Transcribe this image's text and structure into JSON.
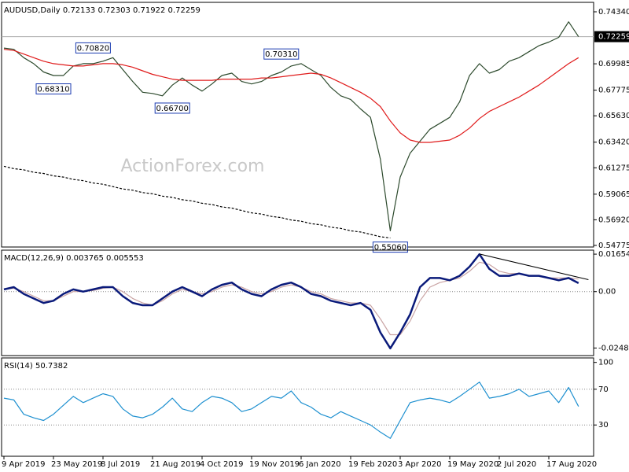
{
  "chart_data": [
    {
      "type": "line",
      "title": "AUDUSD,Daily",
      "ohlc": [
        0.72133,
        0.72303,
        0.71922,
        0.72259
      ],
      "watermark": "ActionForex.com",
      "categories": [
        "9 Apr 2019",
        null,
        null,
        null,
        null,
        "23 May 2019",
        null,
        null,
        null,
        null,
        "8 Jul 2019",
        null,
        null,
        null,
        null,
        "21 Aug 2019",
        null,
        null,
        null,
        null,
        "4 Oct 2019",
        null,
        null,
        null,
        null,
        "19 Nov 2019",
        null,
        null,
        null,
        null,
        "6 Jan 2020",
        null,
        null,
        null,
        null,
        "19 Feb 2020",
        null,
        null,
        null,
        null,
        "3 Apr 2020",
        null,
        null,
        null,
        null,
        "19 May 2020",
        null,
        null,
        null,
        null,
        "2 Jul 2020",
        null,
        null,
        null,
        null,
        "17 Aug 2020",
        null,
        null,
        null
      ],
      "series": [
        {
          "color": "#2d4a2d",
          "values": [
            0.713,
            0.712,
            0.705,
            0.7,
            0.693,
            0.69,
            0.69,
            0.698,
            0.7,
            0.7,
            0.702,
            0.705,
            0.695,
            0.685,
            0.676,
            0.675,
            0.673,
            0.682,
            0.688,
            0.682,
            0.677,
            0.683,
            0.69,
            0.692,
            0.685,
            0.683,
            0.685,
            0.69,
            0.693,
            0.698,
            0.7,
            0.695,
            0.69,
            0.68,
            0.673,
            0.67,
            0.662,
            0.655,
            0.62,
            0.56,
            0.605,
            0.625,
            0.635,
            0.645,
            0.65,
            0.655,
            0.668,
            0.69,
            0.7,
            0.692,
            0.695,
            0.702,
            0.705,
            0.71,
            0.715,
            0.718,
            0.722,
            0.735,
            0.72259
          ]
        },
        {
          "color": "#e01b1b",
          "values": [
            0.712,
            0.711,
            0.708,
            0.705,
            0.702,
            0.7,
            0.699,
            0.698,
            0.698,
            0.699,
            0.7,
            0.7,
            0.699,
            0.697,
            0.694,
            0.691,
            0.689,
            0.687,
            0.686,
            0.686,
            0.686,
            0.686,
            0.687,
            0.687,
            0.687,
            0.687,
            0.688,
            0.688,
            0.689,
            0.69,
            0.691,
            0.692,
            0.691,
            0.688,
            0.684,
            0.68,
            0.676,
            0.671,
            0.664,
            0.652,
            0.642,
            0.636,
            0.634,
            0.634,
            0.635,
            0.636,
            0.64,
            0.646,
            0.654,
            0.66,
            0.664,
            0.668,
            0.672,
            0.677,
            0.682,
            0.688,
            0.694,
            0.7,
            0.705
          ]
        },
        {
          "color": "#000000",
          "style": "dashed",
          "values": [
            0.614,
            0.612,
            0.611,
            0.609,
            0.608,
            0.606,
            0.605,
            0.603,
            0.602,
            0.6,
            0.599,
            0.597,
            0.595,
            0.594,
            0.592,
            0.591,
            0.589,
            0.588,
            0.586,
            0.585,
            0.583,
            0.582,
            0.58,
            0.579,
            0.577,
            0.575,
            0.574,
            0.572,
            0.571,
            0.569,
            0.568,
            0.566,
            0.565,
            0.563,
            0.562,
            0.56,
            0.559,
            0.557,
            0.555,
            0.554,
            null,
            null,
            null,
            null,
            null,
            null,
            null,
            null,
            null,
            null,
            null,
            null,
            null,
            null,
            null,
            null,
            null,
            null,
            null
          ]
        }
      ],
      "ylim": [
        0.5464,
        0.7513
      ],
      "yticks": [
        {
          "value": 0.7434,
          "label": "0.74340"
        },
        0.69985,
        0.67775,
        {
          "value": 0.6563,
          "label": "0.65630"
        },
        {
          "value": 0.6342,
          "label": "0.63420"
        },
        0.61275,
        0.59065,
        {
          "value": 0.5692,
          "label": "0.56920"
        },
        0.54775
      ],
      "last_price": 0.72259,
      "annotations": [
        {
          "value": 0.7082,
          "label": "0.70820",
          "index": 9
        },
        {
          "value": 0.6831,
          "label": "0.68310",
          "index": 5
        },
        {
          "value": 0.667,
          "label": "0.66700",
          "index": 17
        },
        {
          "value": 0.7031,
          "label": "0.70310",
          "index": 28
        },
        {
          "value": 0.5506,
          "label": "0.55060",
          "index": 39
        }
      ]
    },
    {
      "type": "line",
      "title": "MACD(12,26,9)",
      "readout": [
        0.003765,
        0.005553
      ],
      "series": [
        {
          "color": "#c9a3a3",
          "values": [
            0.001,
            0.0015,
            0.0,
            -0.002,
            -0.004,
            -0.004,
            -0.002,
            0.0,
            0.0,
            0.0005,
            0.0015,
            0.002,
            0.0,
            -0.003,
            -0.005,
            -0.006,
            -0.004,
            -0.001,
            0.001,
            0.0,
            -0.001,
            0.0,
            0.002,
            0.003,
            0.002,
            0.0,
            -0.001,
            0.0,
            0.002,
            0.003,
            0.002,
            0.0,
            -0.001,
            -0.003,
            -0.004,
            -0.005,
            -0.005,
            -0.006,
            -0.012,
            -0.019,
            -0.019,
            -0.013,
            -0.004,
            0.002,
            0.004,
            0.005,
            0.006,
            0.009,
            0.013,
            0.012,
            0.009,
            0.008,
            0.008,
            0.007,
            0.007,
            0.006,
            0.006,
            0.006,
            0.005553
          ]
        },
        {
          "color": "#0a1a7a",
          "width": 2.5,
          "values": [
            0.001,
            0.002,
            -0.001,
            -0.003,
            -0.005,
            -0.004,
            -0.001,
            0.001,
            0.0,
            0.001,
            0.002,
            0.002,
            -0.002,
            -0.005,
            -0.006,
            -0.006,
            -0.003,
            0.0,
            0.002,
            0.0,
            -0.002,
            0.001,
            0.003,
            0.004,
            0.001,
            -0.001,
            -0.002,
            0.001,
            0.003,
            0.004,
            0.002,
            -0.001,
            -0.002,
            -0.004,
            -0.005,
            -0.006,
            -0.005,
            -0.008,
            -0.018,
            -0.025,
            -0.018,
            -0.01,
            0.002,
            0.006,
            0.006,
            0.005,
            0.007,
            0.011,
            0.0165,
            0.01,
            0.007,
            0.007,
            0.008,
            0.007,
            0.007,
            0.006,
            0.005,
            0.006,
            0.003765
          ]
        }
      ],
      "ylim": [
        -0.0282,
        0.0183
      ],
      "yticks": [
        0.01654,
        {
          "value": 0,
          "label": "0.00"
        },
        -0.02486
      ],
      "levels": [
        0
      ],
      "trendline": {
        "x": [
          48,
          59
        ],
        "values": [
          0.0166,
          0.0053
        ]
      }
    },
    {
      "type": "line",
      "title": "RSI(14)",
      "readout": [
        50.7382
      ],
      "series": [
        {
          "color": "#1e90d0",
          "values": [
            60,
            58,
            42,
            38,
            35,
            42,
            52,
            62,
            55,
            60,
            65,
            62,
            48,
            40,
            38,
            42,
            50,
            60,
            48,
            45,
            55,
            62,
            60,
            55,
            45,
            48,
            55,
            62,
            60,
            68,
            55,
            50,
            42,
            38,
            45,
            40,
            35,
            30,
            22,
            15,
            35,
            55,
            58,
            60,
            58,
            55,
            62,
            70,
            78,
            60,
            62,
            65,
            70,
            62,
            65,
            68,
            55,
            72,
            50.7382
          ]
        }
      ],
      "ylim": [
        -5,
        105
      ],
      "yticks": [
        100,
        70,
        30
      ],
      "levels": [
        70,
        30
      ]
    }
  ]
}
